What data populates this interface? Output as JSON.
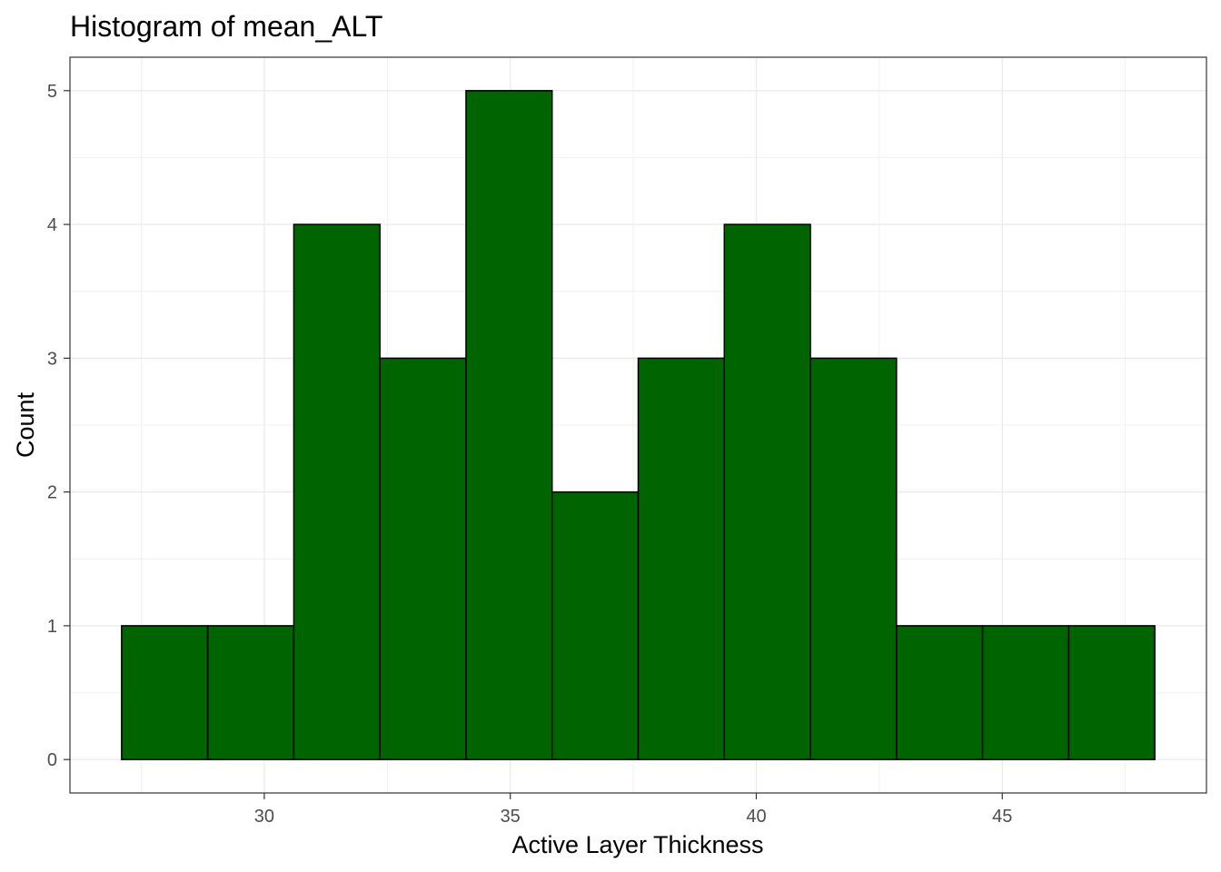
{
  "chart_data": {
    "type": "bar",
    "title": "Histogram of mean_ALT",
    "xlabel": "Active Layer Thickness",
    "ylabel": "Count",
    "bins": [
      {
        "start": 27.1,
        "end": 28.85,
        "count": 1
      },
      {
        "start": 28.85,
        "end": 30.6,
        "count": 1
      },
      {
        "start": 30.6,
        "end": 32.35,
        "count": 4
      },
      {
        "start": 32.35,
        "end": 34.1,
        "count": 3
      },
      {
        "start": 34.1,
        "end": 35.85,
        "count": 5
      },
      {
        "start": 35.85,
        "end": 37.6,
        "count": 2
      },
      {
        "start": 37.6,
        "end": 39.35,
        "count": 3
      },
      {
        "start": 39.35,
        "end": 41.1,
        "count": 4
      },
      {
        "start": 41.1,
        "end": 42.85,
        "count": 3
      },
      {
        "start": 42.85,
        "end": 44.6,
        "count": 1
      },
      {
        "start": 44.6,
        "end": 46.35,
        "count": 1
      },
      {
        "start": 46.35,
        "end": 48.1,
        "count": 1
      }
    ],
    "xlim": [
      26.05,
      49.15
    ],
    "ylim": [
      -0.25,
      5.25
    ],
    "x_ticks": [
      30,
      35,
      40,
      45
    ],
    "y_ticks": [
      0,
      1,
      2,
      3,
      4,
      5
    ],
    "grid": true,
    "bar_fill": "#006400",
    "bar_outline": "#000000",
    "grid_color": "#ebebeb",
    "panel_border": "#333333"
  }
}
